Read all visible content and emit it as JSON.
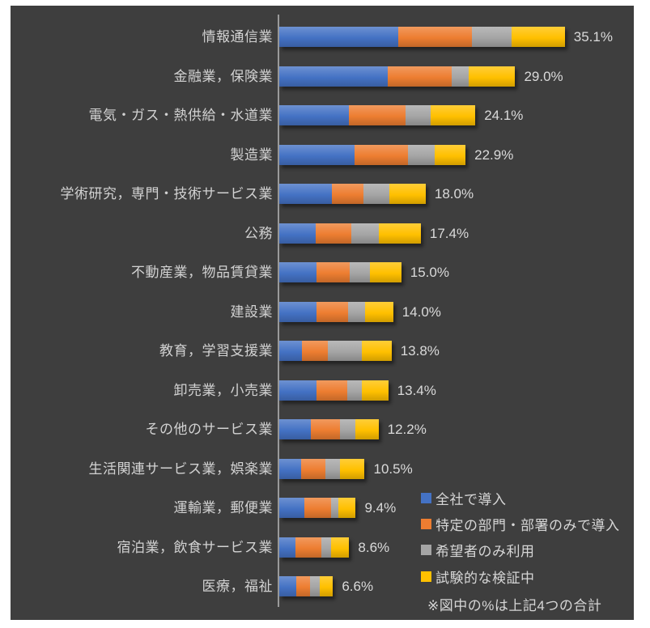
{
  "chart_data": {
    "type": "bar",
    "subtype": "horizontal-stacked",
    "unit": "%",
    "title": "",
    "categories": [
      "情報通信業",
      "金融業，保険業",
      "電気・ガス・熱供給・水道業",
      "製造業",
      "学術研究，専門・技術サービス業",
      "公務",
      "不動産業，物品賃貸業",
      "建設業",
      "教育，学習支援業",
      "卸売業，小売業",
      "その他のサービス業",
      "生活関連サービス業，娯楽業",
      "運輸業，郵便業",
      "宿泊業，飲食サービス業",
      "医療，福祉"
    ],
    "series": [
      {
        "name": "全社で導入",
        "color": "#4472C4",
        "values": [
          14.6,
          13.3,
          8.6,
          9.3,
          6.5,
          4.5,
          4.6,
          4.6,
          2.8,
          4.6,
          3.9,
          2.7,
          3.1,
          2.0,
          2.1
        ]
      },
      {
        "name": "特定の部門・部署のみで導入",
        "color": "#ED7D31",
        "values": [
          9.1,
          7.9,
          6.9,
          6.5,
          3.8,
          4.4,
          4.1,
          3.9,
          3.2,
          3.8,
          3.6,
          3.0,
          3.3,
          3.2,
          1.7
        ]
      },
      {
        "name": "希望者のみ利用",
        "color": "#A5A5A5",
        "values": [
          4.9,
          2.1,
          3.1,
          3.3,
          3.2,
          3.3,
          2.4,
          2.0,
          4.2,
          1.8,
          1.9,
          1.8,
          0.9,
          1.2,
          1.2
        ]
      },
      {
        "name": "試験的な検証中",
        "color": "#FFC000",
        "values": [
          6.5,
          5.7,
          5.5,
          3.8,
          4.5,
          5.2,
          3.9,
          3.5,
          3.6,
          3.2,
          2.8,
          3.0,
          2.1,
          2.2,
          1.6
        ]
      }
    ],
    "totals": [
      35.1,
      29.0,
      24.1,
      22.9,
      18.0,
      17.4,
      15.0,
      14.0,
      13.8,
      13.4,
      12.2,
      10.5,
      9.4,
      8.6,
      6.6
    ],
    "total_labels": [
      "35.1%",
      "29.0%",
      "24.1%",
      "22.9%",
      "18.0%",
      "17.4%",
      "15.0%",
      "14.0%",
      "13.8%",
      "13.4%",
      "12.2%",
      "10.5%",
      "9.4%",
      "8.6%",
      "6.6%"
    ],
    "legend": {
      "position": "inside-bottom-right",
      "entries": [
        "全社で導入",
        "特定の部門・部署のみで導入",
        "希望者のみ利用",
        "試験的な検証中"
      ],
      "note": "※図中の%は上記4つの合計"
    },
    "axis": {
      "category_axis_line": true,
      "value_axis_labels": false,
      "gridlines": false
    },
    "xlim": [
      0,
      38
    ]
  },
  "style": {
    "page_background": "#FFFFFF",
    "panel_background": "#3E3E3E",
    "label_color": "#D2D2D2",
    "value_label_color": "#DADADA",
    "axis_line_color": "#9A9A9A"
  }
}
